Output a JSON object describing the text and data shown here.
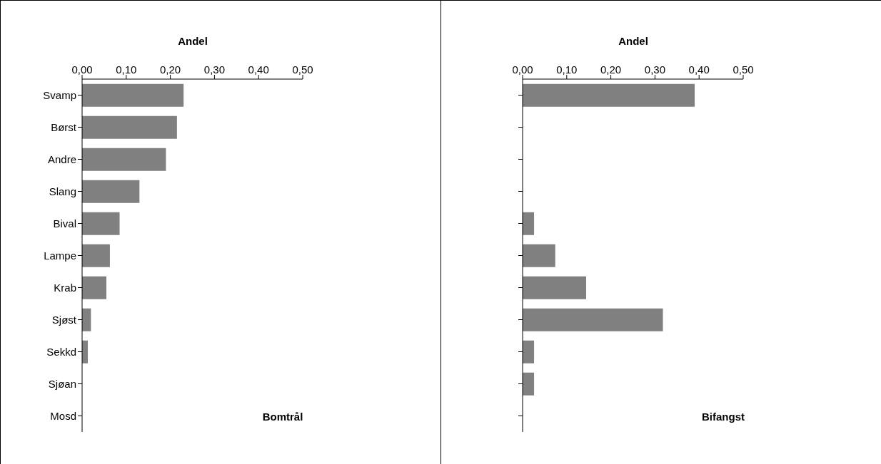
{
  "chart_data": [
    {
      "type": "bar",
      "orientation": "horizontal",
      "xlabel": "Andel",
      "annotations": [
        "Bomtrål"
      ],
      "categories": [
        "Svamp",
        "Børst",
        "Andre",
        "Slang",
        "Bival",
        "Lampe",
        "Krab",
        "Sjøst",
        "Sekkd",
        "Sjøan",
        "Mosd"
      ],
      "values": [
        0.23,
        0.215,
        0.19,
        0.13,
        0.085,
        0.063,
        0.055,
        0.02,
        0.013,
        0,
        0
      ],
      "color": "#808080",
      "xlim": [
        0,
        0.5
      ],
      "xticks": [
        {
          "value": 0,
          "label": "0,00"
        },
        {
          "value": 0.1,
          "label": "0,10"
        },
        {
          "value": 0.2,
          "label": "0,20"
        },
        {
          "value": 0.3,
          "label": "0,30"
        },
        {
          "value": 0.4,
          "label": "0,40"
        },
        {
          "value": 0.5,
          "label": "0,50"
        }
      ],
      "grid": false,
      "legend": false
    },
    {
      "type": "bar",
      "orientation": "horizontal",
      "xlabel": "Andel",
      "annotations": [
        "Bifangst"
      ],
      "categories": [
        null,
        null,
        null,
        null,
        null,
        null,
        null,
        null,
        null,
        null,
        null
      ],
      "values": [
        0.39,
        0,
        0,
        0,
        0.026,
        0.074,
        0.144,
        0.318,
        0.026,
        0.026,
        0
      ],
      "color": "#808080",
      "xlim": [
        0,
        0.5
      ],
      "xticks": [
        {
          "value": 0,
          "label": "0,00"
        },
        {
          "value": 0.1,
          "label": "0,10"
        },
        {
          "value": 0.2,
          "label": "0,20"
        },
        {
          "value": 0.3,
          "label": "0,30"
        },
        {
          "value": 0.4,
          "label": "0,40"
        },
        {
          "value": 0.5,
          "label": "0,50"
        }
      ],
      "grid": false,
      "legend": false,
      "tick_labels": "x"
    }
  ]
}
